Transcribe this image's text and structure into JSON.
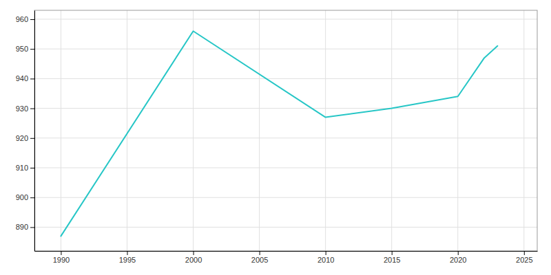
{
  "chart_data": {
    "type": "line",
    "x": [
      1990,
      2000,
      2010,
      2015,
      2020,
      2022,
      2023
    ],
    "values": [
      887,
      956,
      927,
      930,
      934,
      947,
      951
    ],
    "color": "#26c6c6",
    "xlim": [
      1988,
      2026
    ],
    "ylim": [
      882,
      963
    ],
    "xticks": [
      1990,
      1995,
      2000,
      2005,
      2010,
      2015,
      2020,
      2025
    ],
    "yticks": [
      890,
      900,
      910,
      920,
      930,
      940,
      950,
      960
    ],
    "grid": true
  }
}
